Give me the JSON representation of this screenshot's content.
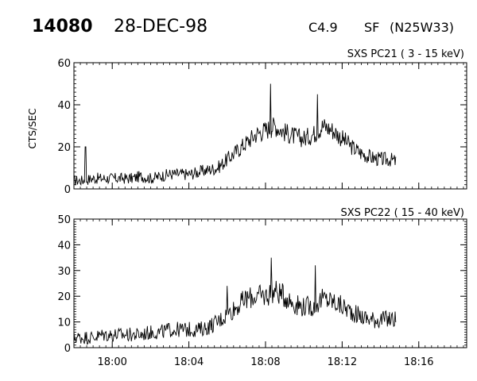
{
  "header": {
    "event_id": "14080",
    "date": "28-DEC-98",
    "goes_class": "C4.9",
    "optical_class": "SF",
    "location": "(N25W33)"
  },
  "chart_data": [
    {
      "type": "line",
      "title": "SXS PC21 ( 3 - 15 keV)",
      "ylabel": "CTS/SEC",
      "xlabel": "",
      "xlim": [
        "17:58:00",
        "18:18:30"
      ],
      "ylim": [
        0,
        60
      ],
      "yticks": [
        0,
        20,
        40,
        60
      ],
      "xticks": [
        "18:00",
        "18:04",
        "18:08",
        "18:12",
        "18:16"
      ],
      "show_xtick_labels": false,
      "x_unit": "minutes after 18:00",
      "series": [
        {
          "values": [
            [
              -2.0,
              4
            ],
            [
              -1.5,
              4
            ],
            [
              -1.0,
              5
            ],
            [
              -0.5,
              5
            ],
            [
              0.0,
              5
            ],
            [
              0.5,
              5
            ],
            [
              1.0,
              5
            ],
            [
              1.5,
              6
            ],
            [
              2.0,
              5
            ],
            [
              2.5,
              6
            ],
            [
              3.0,
              7
            ],
            [
              3.5,
              7
            ],
            [
              4.0,
              7
            ],
            [
              4.5,
              8
            ],
            [
              5.0,
              9
            ],
            [
              5.5,
              10
            ],
            [
              6.0,
              14
            ],
            [
              6.5,
              18
            ],
            [
              7.0,
              22
            ],
            [
              7.5,
              26
            ],
            [
              8.0,
              28
            ],
            [
              8.5,
              30
            ],
            [
              9.0,
              27
            ],
            [
              9.5,
              25
            ],
            [
              10.0,
              24
            ],
            [
              10.5,
              26
            ],
            [
              11.0,
              30
            ],
            [
              11.5,
              28
            ],
            [
              12.0,
              24
            ],
            [
              12.5,
              20
            ],
            [
              13.0,
              17
            ],
            [
              13.5,
              15
            ],
            [
              14.0,
              14
            ],
            [
              14.5,
              14
            ],
            [
              14.8,
              13
            ]
          ],
          "spikes": [
            [
              -1.4,
              20
            ],
            [
              8.25,
              50
            ],
            [
              10.7,
              45
            ]
          ],
          "noise_amplitude": 5
        }
      ]
    },
    {
      "type": "line",
      "title": "SXS PC22 ( 15 - 40 keV)",
      "ylabel": "",
      "xlabel": "",
      "xlim": [
        "17:58:00",
        "18:18:30"
      ],
      "ylim": [
        0,
        50
      ],
      "yticks": [
        0,
        10,
        20,
        30,
        40,
        50
      ],
      "xticks": [
        "18:00",
        "18:04",
        "18:08",
        "18:12",
        "18:16"
      ],
      "show_xtick_labels": true,
      "x_unit": "minutes after 18:00",
      "series": [
        {
          "values": [
            [
              -2.0,
              4
            ],
            [
              -1.5,
              4
            ],
            [
              -1.0,
              4
            ],
            [
              -0.5,
              5
            ],
            [
              0.0,
              5
            ],
            [
              0.5,
              5
            ],
            [
              1.0,
              5
            ],
            [
              1.5,
              5
            ],
            [
              2.0,
              6
            ],
            [
              2.5,
              6
            ],
            [
              3.0,
              7
            ],
            [
              3.5,
              7
            ],
            [
              4.0,
              7
            ],
            [
              4.5,
              7
            ],
            [
              5.0,
              8
            ],
            [
              5.5,
              10
            ],
            [
              6.0,
              13
            ],
            [
              6.5,
              16
            ],
            [
              7.0,
              19
            ],
            [
              7.5,
              20
            ],
            [
              8.0,
              20
            ],
            [
              8.5,
              22
            ],
            [
              9.0,
              20
            ],
            [
              9.5,
              17
            ],
            [
              10.0,
              16
            ],
            [
              10.5,
              16
            ],
            [
              11.0,
              19
            ],
            [
              11.5,
              18
            ],
            [
              12.0,
              16
            ],
            [
              12.5,
              14
            ],
            [
              13.0,
              12
            ],
            [
              13.5,
              11
            ],
            [
              14.0,
              11
            ],
            [
              14.5,
              11
            ],
            [
              14.8,
              11
            ]
          ],
          "spikes": [
            [
              8.3,
              35
            ],
            [
              10.6,
              32
            ],
            [
              6.0,
              24
            ]
          ],
          "noise_amplitude": 5
        }
      ]
    }
  ],
  "colors": {
    "background": "#ffffff",
    "ink": "#000000"
  }
}
